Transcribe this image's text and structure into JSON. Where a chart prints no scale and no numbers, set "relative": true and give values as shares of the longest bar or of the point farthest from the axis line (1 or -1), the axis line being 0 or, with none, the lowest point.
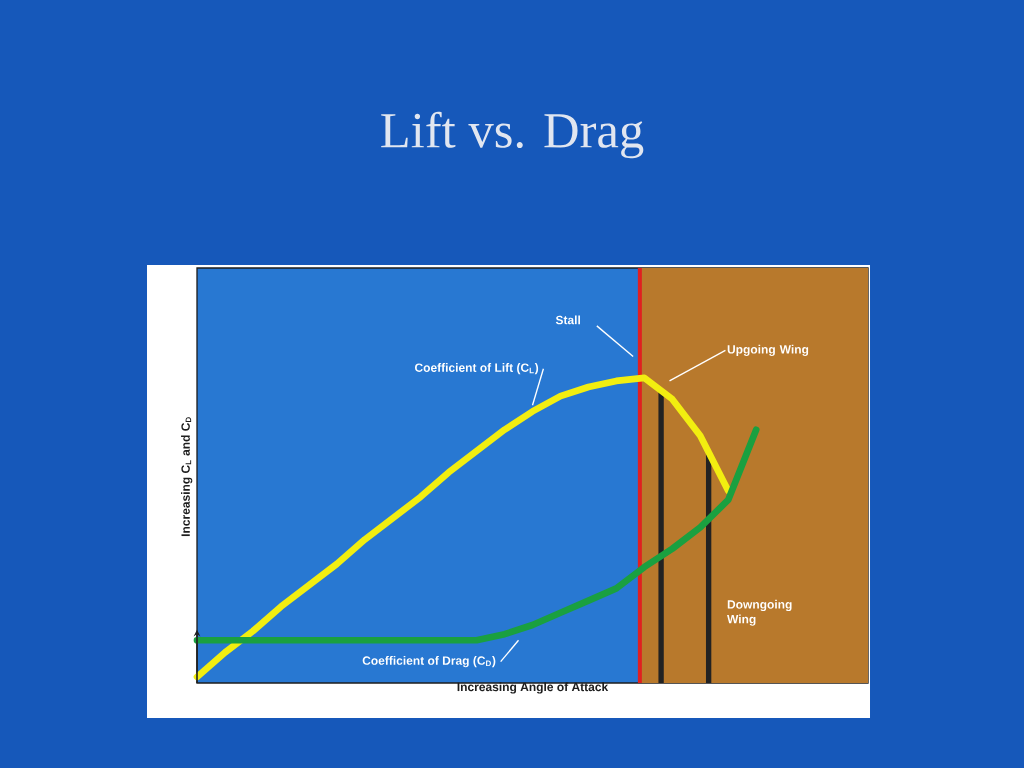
{
  "chart_data": {
    "type": "line",
    "title": "Lift vs. Drag",
    "xlabel": "Increasing Angle of Attack",
    "ylabel": "Increasing C$_{L}$ and C$_{D}$",
    "relative": true,
    "categories": [
      null,
      null,
      null,
      null,
      null,
      null,
      null,
      null,
      null,
      null,
      null,
      null,
      null,
      null,
      null,
      null,
      null,
      null,
      null,
      null,
      null,
      null,
      null,
      null,
      null
    ],
    "series": [
      {
        "name": "Coefficient of Lift (C$_{L}$)",
        "color": "#f2ee10",
        "values": [
          0.02,
          0.1,
          0.17,
          0.25,
          0.32,
          0.39,
          0.47,
          0.54,
          0.61,
          0.69,
          0.76,
          0.83,
          0.89,
          0.94,
          0.97,
          0.99,
          1.0,
          0.93,
          0.81,
          0.63,
          null,
          null,
          null,
          null,
          null
        ]
      },
      {
        "name": "Coefficient of Drag (C$_{D}$)",
        "color": "#1aa040",
        "values": [
          0.14,
          0.14,
          0.14,
          0.14,
          0.14,
          0.14,
          0.14,
          0.14,
          0.14,
          0.14,
          0.14,
          0.16,
          0.19,
          0.23,
          0.27,
          0.31,
          0.38,
          0.44,
          0.51,
          0.6,
          0.83,
          null,
          null,
          null,
          null
        ]
      }
    ],
    "annotations": [
      "Stall",
      "Upgoing Wing",
      "Downgoing Wing"
    ]
  }
}
